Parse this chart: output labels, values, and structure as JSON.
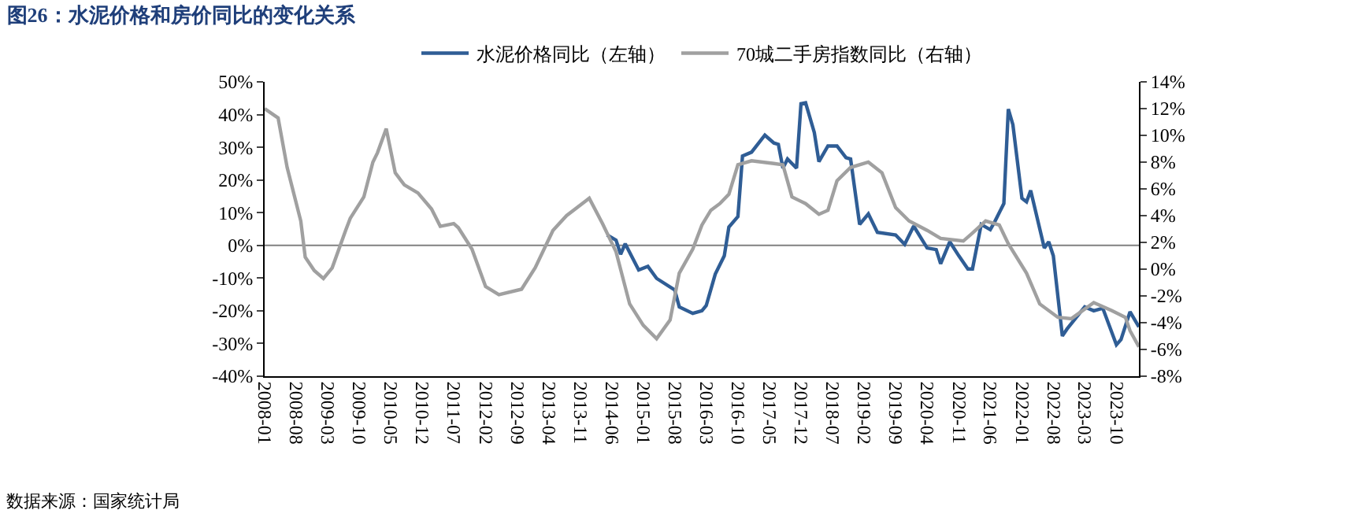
{
  "chart_data": {
    "type": "line",
    "title": "图26：水泥价格和房价同比的变化关系",
    "xlim": [
      "2008-01",
      "2024-03"
    ],
    "xticks": [
      "2008-01",
      "2008-08",
      "2009-03",
      "2009-10",
      "2010-05",
      "2010-12",
      "2011-07",
      "2012-02",
      "2012-09",
      "2013-04",
      "2013-11",
      "2014-06",
      "2015-01",
      "2015-08",
      "2016-03",
      "2016-10",
      "2017-05",
      "2017-12",
      "2018-07",
      "2019-02",
      "2019-09",
      "2020-04",
      "2020-11",
      "2021-06",
      "2022-01",
      "2022-08",
      "2023-03",
      "2023-10"
    ],
    "ylim": [
      -40,
      50
    ],
    "yticks": [
      {
        "value": -40,
        "label": "-40%"
      },
      {
        "value": -30,
        "label": "-30%"
      },
      {
        "value": -20,
        "label": "-20%"
      },
      {
        "value": -10,
        "label": "-10%"
      },
      {
        "value": 0,
        "label": "0%"
      },
      {
        "value": 10,
        "label": "10%"
      },
      {
        "value": 20,
        "label": "20%"
      },
      {
        "value": 30,
        "label": "30%"
      },
      {
        "value": 40,
        "label": "40%"
      },
      {
        "value": 50,
        "label": "50%"
      }
    ],
    "y2lim": [
      -8,
      14
    ],
    "y2ticks": [
      {
        "value": -8,
        "label": "-8%"
      },
      {
        "value": -6,
        "label": "-6%"
      },
      {
        "value": -4,
        "label": "-4%"
      },
      {
        "value": -2,
        "label": "-2%"
      },
      {
        "value": 0,
        "label": "0%"
      },
      {
        "value": 2,
        "label": "2%"
      },
      {
        "value": 4,
        "label": "4%"
      },
      {
        "value": 6,
        "label": "6%"
      },
      {
        "value": 8,
        "label": "8%"
      },
      {
        "value": 10,
        "label": "10%"
      },
      {
        "value": 12,
        "label": "12%"
      },
      {
        "value": 14,
        "label": "14%"
      }
    ],
    "grid": false,
    "legend": "top",
    "marker": "none",
    "line_style": "solid",
    "ref_lines": [
      {
        "axis": "y",
        "value": 0,
        "color": "#808080"
      }
    ],
    "annotations": [
      "数据来源：国家统计局"
    ],
    "series": [
      {
        "name": "水泥价格同比（左轴）",
        "color": "#2f5d95",
        "x": [
          "2014-05",
          "2014-07",
          "2014-08",
          "2014-09",
          "2014-12",
          "2015-02",
          "2015-04",
          "2015-08",
          "2015-09",
          "2015-12",
          "2016-02",
          "2016-03",
          "2016-05",
          "2016-07",
          "2016-08",
          "2016-10",
          "2016-11",
          "2017-01",
          "2017-04",
          "2017-06",
          "2017-07",
          "2017-08",
          "2017-09",
          "2017-11",
          "2017-12",
          "2018-01",
          "2018-03",
          "2018-04",
          "2018-06",
          "2018-08",
          "2018-10",
          "2018-11",
          "2019-01",
          "2019-03",
          "2019-05",
          "2019-09",
          "2019-11",
          "2020-01",
          "2020-04",
          "2020-06",
          "2020-07",
          "2020-09",
          "2020-11",
          "2021-01",
          "2021-02",
          "2021-04",
          "2021-06",
          "2021-07",
          "2021-09",
          "2021-10",
          "2021-11",
          "2022-01",
          "2022-02",
          "2022-03",
          "2022-06",
          "2022-07",
          "2022-08",
          "2022-10",
          "2022-11",
          "2023-03",
          "2023-05",
          "2023-07",
          "2023-10",
          "2023-11",
          "2024-01",
          "2024-03"
        ],
        "values": [
          3.2,
          1.6,
          -2.7,
          0.5,
          -7.5,
          -6.4,
          -10.1,
          -13.6,
          -18.8,
          -20.8,
          -20.0,
          -18.4,
          -8.8,
          -3.2,
          5.6,
          8.8,
          27.3,
          28.5,
          33.7,
          31.3,
          30.9,
          23.6,
          26.4,
          23.6,
          43.3,
          43.6,
          34.5,
          25.6,
          30.4,
          30.4,
          26.8,
          26.4,
          6.4,
          9.6,
          4.0,
          3.2,
          0.3,
          5.9,
          -0.8,
          -1.3,
          -5.6,
          1.1,
          -3.2,
          -7.2,
          -7.2,
          6.4,
          4.8,
          7.2,
          12.8,
          41.7,
          36.9,
          14.4,
          13.3,
          16.8,
          -0.8,
          1.1,
          -3.2,
          -27.7,
          -25.6,
          -18.8,
          -20.0,
          -19.2,
          -30.4,
          -28.8,
          -20.3,
          -24.9
        ]
      },
      {
        "name": "70城二手房指数同比（右轴）",
        "color": "#a0a0a0",
        "axis": "y2",
        "x": [
          "2008-01",
          "2008-04",
          "2008-06",
          "2008-09",
          "2008-10",
          "2008-12",
          "2009-02",
          "2009-04",
          "2009-07",
          "2009-08",
          "2009-11",
          "2010-01",
          "2010-02",
          "2010-04",
          "2010-06",
          "2010-08",
          "2010-11",
          "2011-02",
          "2011-04",
          "2011-07",
          "2011-08",
          "2011-11",
          "2012-02",
          "2012-05",
          "2012-10",
          "2013-01",
          "2013-05",
          "2013-08",
          "2014-01",
          "2014-04",
          "2014-07",
          "2014-10",
          "2015-01",
          "2015-04",
          "2015-07",
          "2015-09",
          "2015-12",
          "2016-02",
          "2016-04",
          "2016-06",
          "2016-08",
          "2016-10",
          "2017-01",
          "2017-06",
          "2017-08",
          "2017-10",
          "2018-01",
          "2018-04",
          "2018-06",
          "2018-08",
          "2018-11",
          "2019-03",
          "2019-06",
          "2019-09",
          "2019-12",
          "2020-04",
          "2020-07",
          "2020-12",
          "2021-02",
          "2021-05",
          "2021-08",
          "2021-10",
          "2022-02",
          "2022-05",
          "2022-09",
          "2022-12",
          "2023-05",
          "2023-09",
          "2023-12",
          "2024-01",
          "2024-03"
        ],
        "values": [
          12.0,
          11.3,
          7.6,
          3.6,
          0.9,
          -0.1,
          -0.7,
          0.1,
          2.9,
          3.8,
          5.4,
          8.0,
          8.7,
          10.5,
          7.2,
          6.3,
          5.7,
          4.5,
          3.2,
          3.4,
          3.1,
          1.5,
          -1.3,
          -1.9,
          -1.5,
          0.1,
          2.9,
          4.0,
          5.3,
          3.4,
          1.3,
          -2.6,
          -4.2,
          -5.2,
          -3.8,
          -0.3,
          1.5,
          3.3,
          4.4,
          4.9,
          5.6,
          7.8,
          8.1,
          7.9,
          7.8,
          5.4,
          4.9,
          4.1,
          4.4,
          6.6,
          7.6,
          8.0,
          7.2,
          4.6,
          3.6,
          2.9,
          2.3,
          2.1,
          2.7,
          3.6,
          3.3,
          1.9,
          -0.3,
          -2.6,
          -3.6,
          -3.7,
          -2.5,
          -3.1,
          -3.6,
          -4.6,
          -5.8
        ]
      }
    ]
  }
}
